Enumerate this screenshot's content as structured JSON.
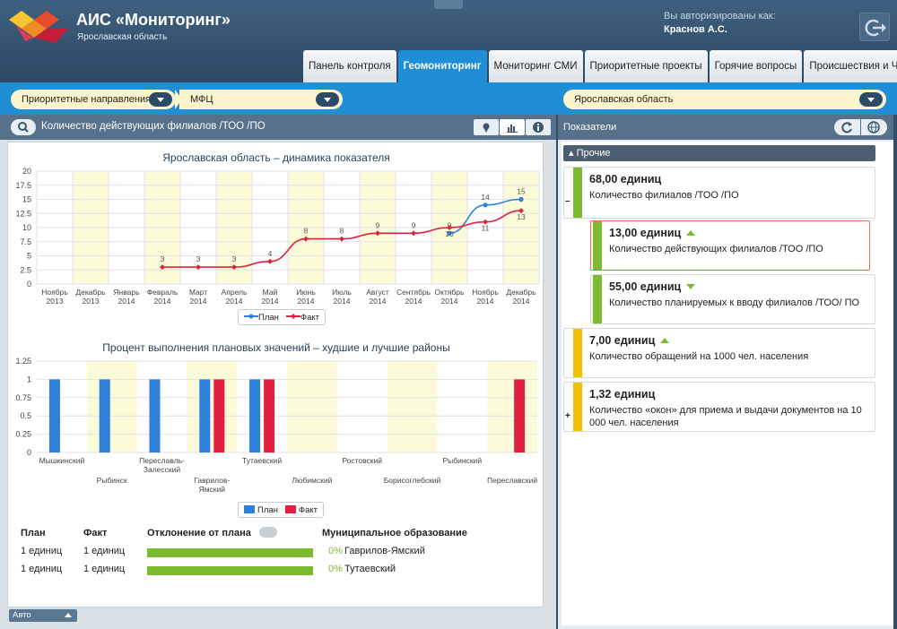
{
  "app": {
    "title": "АИС «Мониторинг»",
    "region": "Ярославская область",
    "auth_label": "Вы авторизированы как:",
    "user": "Краснов А.С."
  },
  "tabs": [
    {
      "label": "Панель контроля",
      "active": false
    },
    {
      "label": "Геомониторинг",
      "active": true
    },
    {
      "label": "Мониторинг СМИ",
      "active": false
    },
    {
      "label": "Приоритетные проекты",
      "active": false
    },
    {
      "label": "Горячие вопросы",
      "active": false
    },
    {
      "label": "Происшествия и ЧС",
      "active": false
    }
  ],
  "filters": {
    "direction": "Приоритетные направления",
    "subject": "МФЦ",
    "region": "Ярославская область"
  },
  "left_panel": {
    "title": "Количество действующих филиалов /ТОО /ПО",
    "auto_label": "Авто"
  },
  "chart_data": [
    {
      "type": "line",
      "title": "Ярославская область – динамика показателя",
      "categories": [
        "Ноябрь 2013",
        "Декабрь 2013",
        "Январь 2014",
        "Февраль 2014",
        "Март 2014",
        "Апрель 2014",
        "Май 2014",
        "Июнь 2014",
        "Июль 2014",
        "Август 2014",
        "Сентябрь 2014",
        "Октябрь 2014",
        "Ноябрь 2014",
        "Декабрь 2014"
      ],
      "category_lines": [
        [
          "Ноябрь",
          "2013"
        ],
        [
          "Декабрь",
          "2013"
        ],
        [
          "Январь",
          "2014"
        ],
        [
          "Февраль",
          "2014"
        ],
        [
          "Март",
          "2014"
        ],
        [
          "Апрель",
          "2014"
        ],
        [
          "Май",
          "2014"
        ],
        [
          "Июнь",
          "2014"
        ],
        [
          "Июль",
          "2014"
        ],
        [
          "Август",
          "2014"
        ],
        [
          "Сентябрь",
          "2014"
        ],
        [
          "Октябрь",
          "2014"
        ],
        [
          "Ноябрь",
          "2014"
        ],
        [
          "Декабрь",
          "2014"
        ]
      ],
      "series": [
        {
          "name": "План",
          "color": "#2f7ed8",
          "values": [
            null,
            null,
            null,
            null,
            null,
            null,
            null,
            null,
            null,
            null,
            null,
            9,
            14,
            15
          ]
        },
        {
          "name": "Факт",
          "color": "#e0203e",
          "values": [
            null,
            null,
            null,
            3,
            3,
            3,
            4,
            8,
            8,
            9,
            9,
            10,
            11,
            13
          ]
        }
      ],
      "ylim": [
        0,
        20
      ],
      "yticks": [
        "0",
        "2.5",
        "5",
        "7.5",
        "10",
        "12.5",
        "15",
        "17.5",
        "20"
      ],
      "shaded_columns": [
        1,
        3,
        5,
        7,
        9,
        11,
        13
      ],
      "legend": "bottom"
    },
    {
      "type": "bar",
      "title": "Процент выполнения плановых значений – худшие и лучшие районы",
      "categories": [
        "Мышкинский",
        "Рыбинск",
        "Переславль-Залесский",
        "Гаврилов-Ямский",
        "Тутаевский",
        "Любимский",
        "Ростовский",
        "Борисоглебский",
        "Рыбинский",
        "Переславский"
      ],
      "category_lines": [
        [
          "Мышкинский"
        ],
        [
          "Рыбинск"
        ],
        [
          "Переславль-",
          "Залесский"
        ],
        [
          "Гаврилов-",
          "Ямский"
        ],
        [
          "Тутаевский"
        ],
        [
          "Любимский"
        ],
        [
          "Ростовский"
        ],
        [
          "Борисоглебский"
        ],
        [
          "Рыбинский"
        ],
        [
          "Переславский"
        ]
      ],
      "series": [
        {
          "name": "План",
          "color": "#2f7ed8",
          "values": [
            1,
            1,
            1,
            1,
            1,
            0,
            0,
            0,
            0,
            0
          ]
        },
        {
          "name": "Факт",
          "color": "#e0203e",
          "values": [
            0,
            0,
            0,
            1,
            1,
            0,
            0,
            0,
            0,
            1
          ]
        }
      ],
      "ylim": [
        0,
        1.25
      ],
      "yticks": [
        "0",
        "0.25",
        "0.5",
        "0.75",
        "1",
        "1.25"
      ],
      "shaded_columns": [
        1,
        3,
        5,
        7,
        9
      ],
      "legend": "bottom"
    }
  ],
  "table": {
    "headers": {
      "plan": "План",
      "fact": "Факт",
      "deviation": "Отклонение от плана",
      "municipality": "Муниципальное образование"
    },
    "rows": [
      {
        "plan": "1 единиц",
        "fact": "1 единиц",
        "pct": "0%",
        "municipality": "Гаврилов-Ямский",
        "progress": 1.0
      },
      {
        "plan": "1 единиц",
        "fact": "1 единиц",
        "pct": "0%",
        "municipality": "Тутаевский",
        "progress": 1.0
      }
    ]
  },
  "right_panel": {
    "title": "Показатели",
    "group": "Прочие",
    "cards": [
      {
        "value": "68,00 единиц",
        "label": "Количество филиалов /ТОО /ПО",
        "strip": "#7cbb2f",
        "toggle": "–",
        "trend": ""
      },
      {
        "value": "13,00 единиц",
        "label": "Количество действующих филиалов /ТОО /ПО",
        "strip": "#7cbb2f",
        "toggle": "",
        "trend": "up"
      },
      {
        "value": "55,00 единиц",
        "label": "Количество планируемых к вводу филиалов /ТОО/ ПО",
        "strip": "#7cbb2f",
        "toggle": "",
        "trend": "down"
      },
      {
        "value": "7,00 единиц",
        "label": "Количество обращений на 1000 чел. населения",
        "strip": "#f2c200",
        "toggle": "",
        "trend": "up"
      },
      {
        "value": "1,32 единиц",
        "label": "Количество «окон» для приема и выдачи документов на 10 000 чел. населения",
        "strip": "#f2c200",
        "toggle": "+",
        "trend": ""
      }
    ]
  }
}
